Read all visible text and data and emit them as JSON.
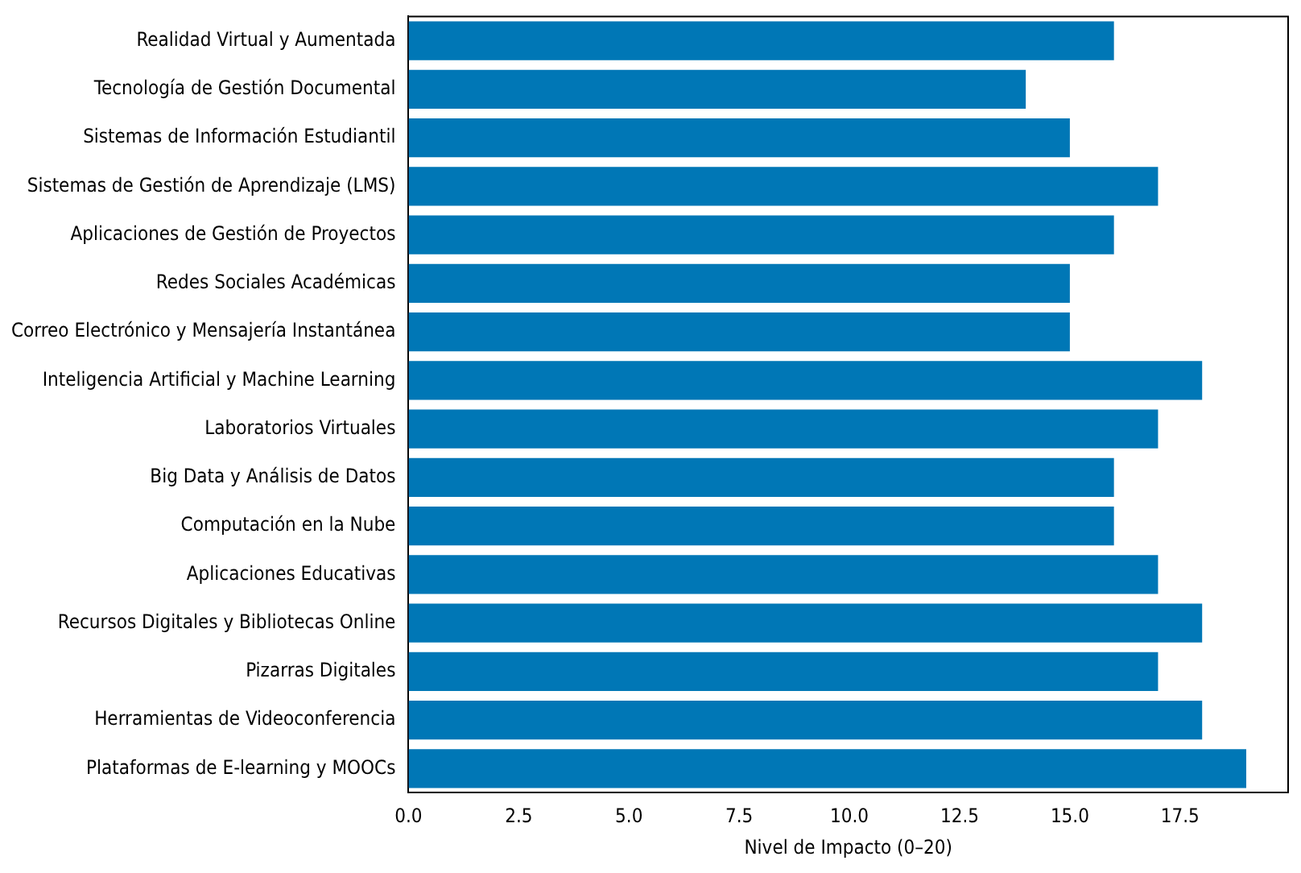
{
  "chart_data": {
    "type": "bar",
    "orientation": "horizontal",
    "xlabel": "Nivel de Impacto (0–20)",
    "categories": [
      "Realidad Virtual y Aumentada",
      "Tecnología de Gestión Documental",
      "Sistemas de Información Estudiantil",
      "Sistemas de Gestión de Aprendizaje (LMS)",
      "Aplicaciones de Gestión de Proyectos",
      "Redes Sociales Académicas",
      "Correo Electrónico y Mensajería Instantánea",
      "Inteligencia Artificial y Machine Learning",
      "Laboratorios Virtuales",
      "Big Data y Análisis de Datos",
      "Computación en la Nube",
      "Aplicaciones Educativas",
      "Recursos Digitales y Bibliotecas Online",
      "Pizarras Digitales",
      "Herramientas de Videoconferencia",
      "Plataformas de E-learning y MOOCs"
    ],
    "values": [
      16,
      14,
      15,
      17,
      16,
      15,
      15,
      18,
      17,
      16,
      16,
      17,
      18,
      17,
      18,
      19
    ],
    "color": "#0077b6",
    "xlim": [
      0,
      19.95
    ],
    "xticks": [
      {
        "value": 0,
        "label": "0.0"
      },
      {
        "value": 2.5,
        "label": "2.5"
      },
      {
        "value": 5,
        "label": "5.0"
      },
      {
        "value": 7.5,
        "label": "7.5"
      },
      {
        "value": 10,
        "label": "10.0"
      },
      {
        "value": 12.5,
        "label": "12.5"
      },
      {
        "value": 15,
        "label": "15.0"
      },
      {
        "value": 17.5,
        "label": "17.5"
      }
    ],
    "grid": false,
    "legend": false
  }
}
